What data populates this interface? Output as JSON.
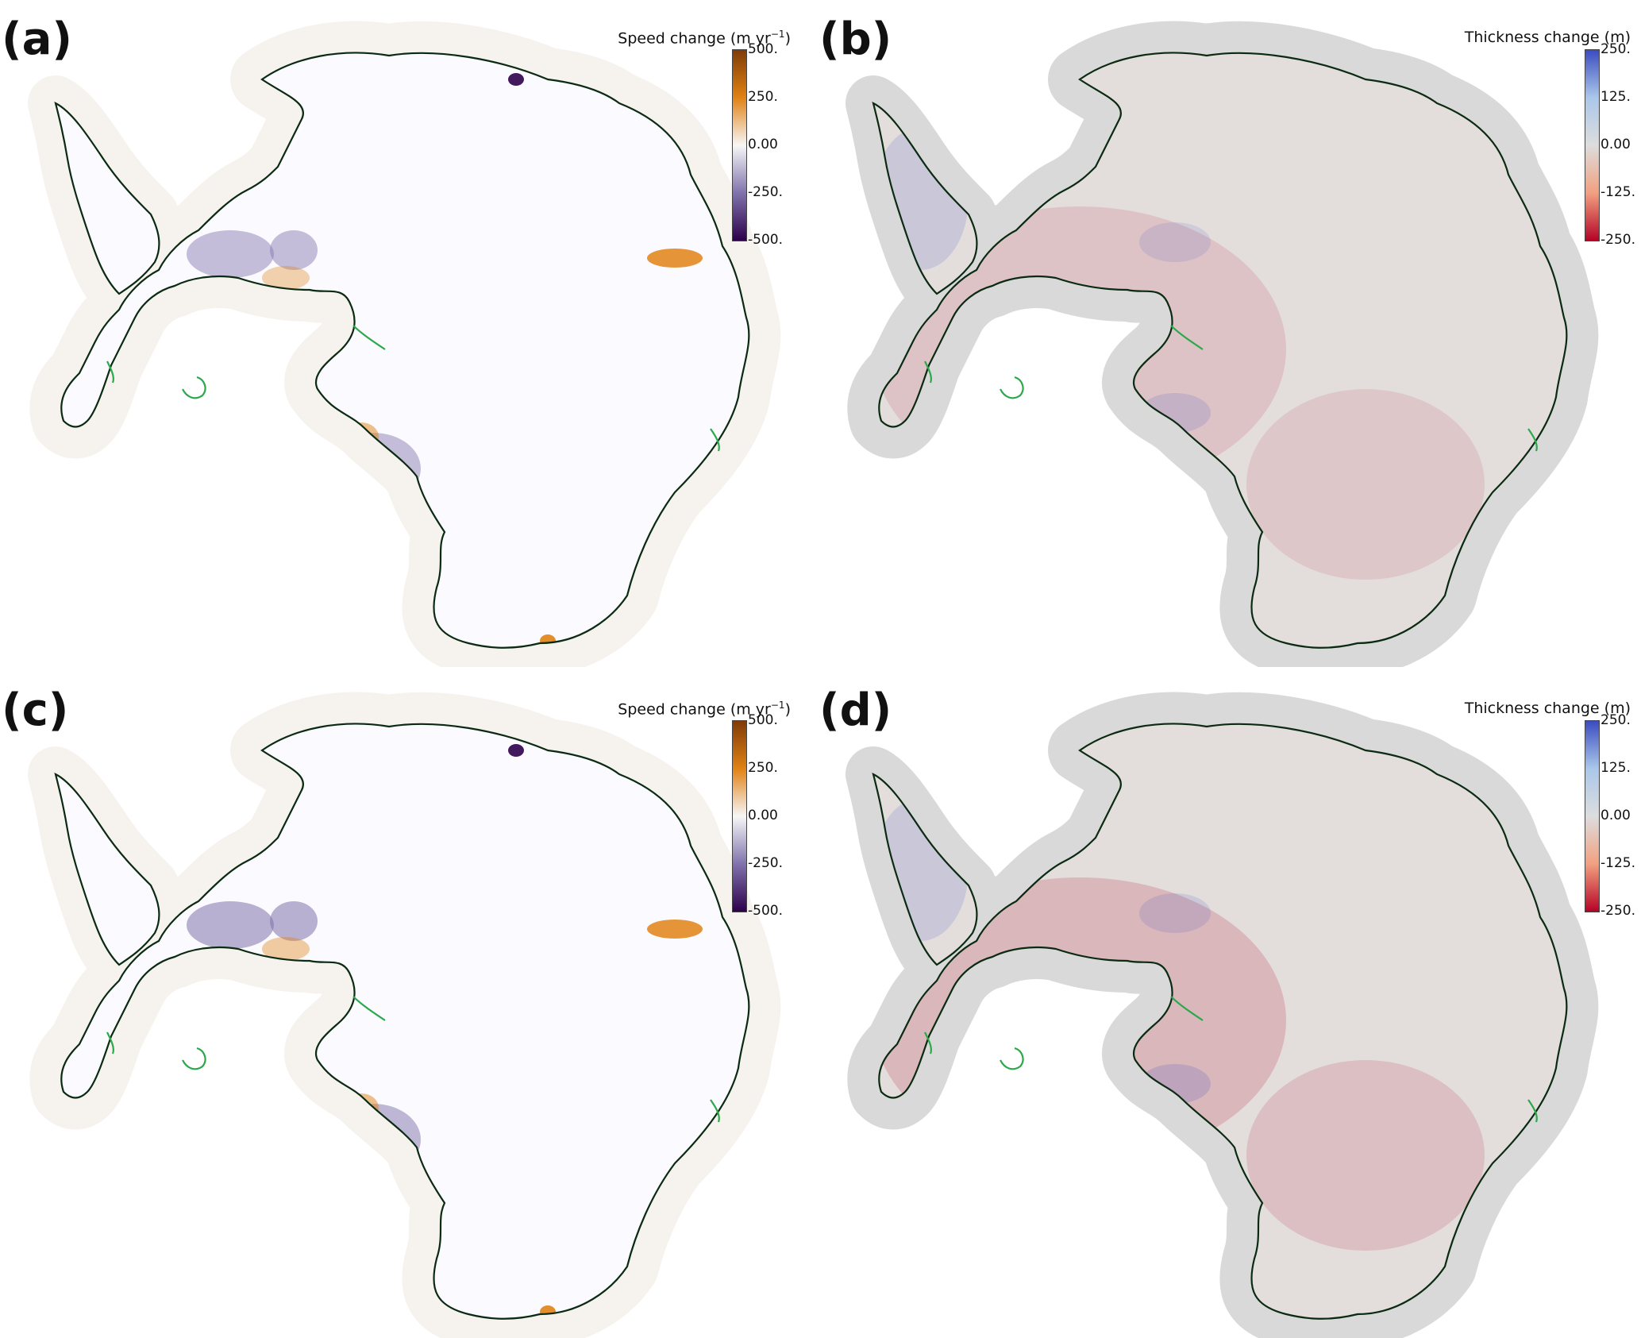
{
  "figure": {
    "panels": [
      {
        "label": "(a)",
        "colorbar_title": "Speed change (m yr",
        "colorbar_unit_sup": "−1",
        "colorbar_title_end": ")",
        "ticks": [
          "500.",
          "250.",
          "0.00",
          "-250.",
          "-500."
        ],
        "colormap": "speed"
      },
      {
        "label": "(b)",
        "colorbar_title": "Thickness change (m)",
        "colorbar_unit_sup": "",
        "colorbar_title_end": "",
        "ticks": [
          "250.",
          "125.",
          "0.00",
          "-125.",
          "-250."
        ],
        "colormap": "thickness"
      },
      {
        "label": "(c)",
        "colorbar_title": "Speed change (m yr",
        "colorbar_unit_sup": "−1",
        "colorbar_title_end": ")",
        "ticks": [
          "500.",
          "250.",
          "0.00",
          "-250.",
          "-500."
        ],
        "colormap": "speed"
      },
      {
        "label": "(d)",
        "colorbar_title": "Thickness change (m)",
        "colorbar_unit_sup": "",
        "colorbar_title_end": "",
        "ticks": [
          "250.",
          "125.",
          "0.00",
          "-125.",
          "-250."
        ],
        "colormap": "thickness"
      }
    ],
    "colors": {
      "speed_high": "#7f3b08",
      "speed_mid_high": "#e08214",
      "speed_zero": "#f7f7f7",
      "speed_mid_low": "#8073ac",
      "speed_low": "#2d004b",
      "thick_high": "#3b4cc0",
      "thick_zero": "#dddddd",
      "thick_low": "#b40426",
      "coastline": "#0b2a12",
      "grounding_line": "#2aa84a",
      "halo_light": "#f6f3ef",
      "halo_gray": "#d9d9d9"
    }
  }
}
